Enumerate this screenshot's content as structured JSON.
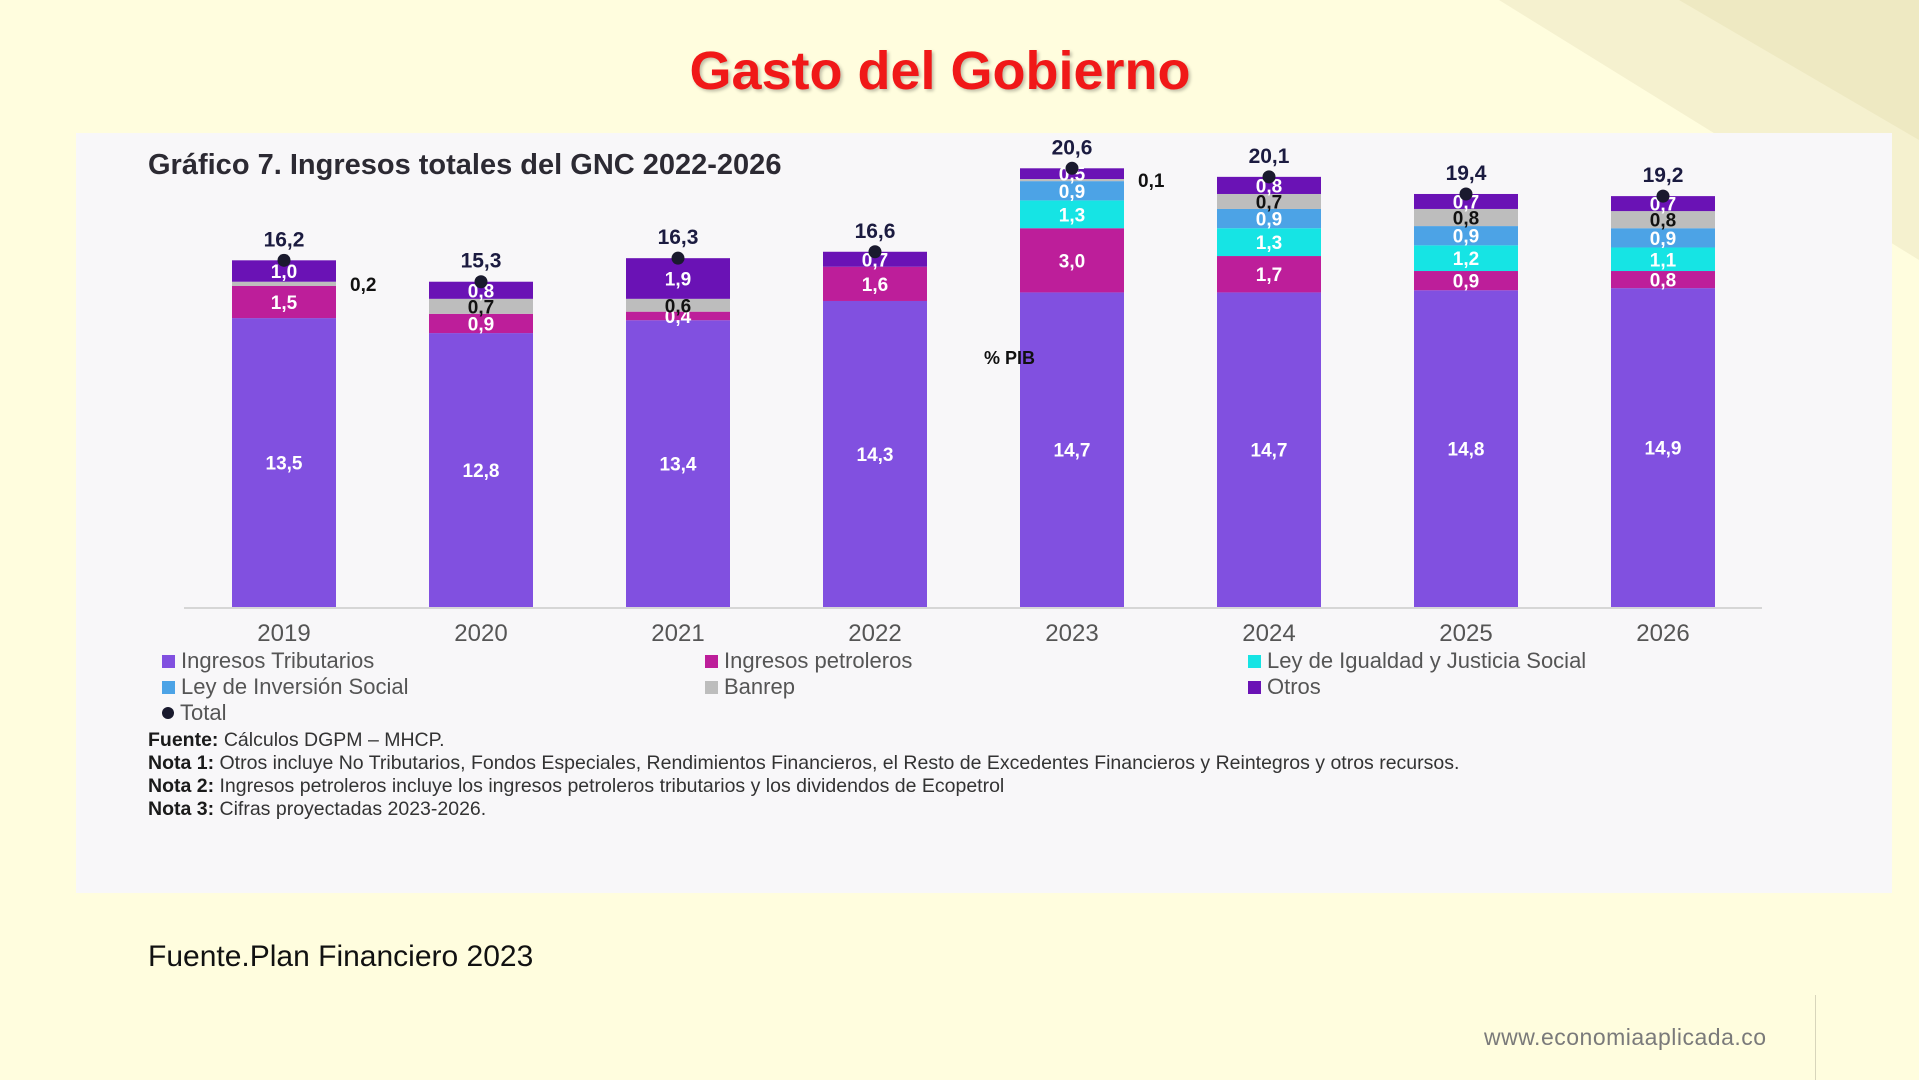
{
  "slide": {
    "title": "Gasto del Gobierno",
    "source": "Fuente.Plan Financiero 2023",
    "website": "www.economiaaplicada.co"
  },
  "chart_title": {
    "prefix": "Gráfico 7.",
    "text": "Ingresos totales del GNC 2022-2026"
  },
  "unit_label": "% PIB",
  "chart_data": {
    "type": "bar",
    "stacked": true,
    "categories": [
      "2019",
      "2020",
      "2021",
      "2022",
      "2023",
      "2024",
      "2025",
      "2026"
    ],
    "series": [
      {
        "name": "Ingresos Tributarios",
        "color": "#8150E0",
        "values": [
          13.5,
          12.8,
          13.4,
          14.3,
          14.7,
          14.7,
          14.8,
          14.9
        ],
        "labels": [
          "13,5",
          "12,8",
          "13,4",
          "14,3",
          "14,7",
          "14,7",
          "14,8",
          "14,9"
        ]
      },
      {
        "name": "Ingresos petroleros",
        "color": "#BD1E9A",
        "values": [
          1.5,
          0.9,
          0.4,
          1.6,
          3.0,
          1.7,
          0.9,
          0.8
        ],
        "labels": [
          "1,5",
          "0,9",
          "0,4",
          "1,6",
          "3,0",
          "1,7",
          "0,9",
          "0,8"
        ]
      },
      {
        "name": "Ley de Igualdad y Justicia Social",
        "color": "#16E4E4",
        "values": [
          0,
          0,
          0,
          0,
          1.3,
          1.3,
          1.2,
          1.1
        ],
        "labels": [
          "",
          "",
          "",
          "",
          "1,3",
          "1,3",
          "1,2",
          "1,1"
        ]
      },
      {
        "name": "Ley de Inversión Social",
        "color": "#4CA3E6",
        "values": [
          0,
          0,
          0,
          0,
          0.9,
          0.9,
          0.9,
          0.9
        ],
        "labels": [
          "",
          "",
          "",
          "",
          "0,9",
          "0,9",
          "0,9",
          "0,9"
        ]
      },
      {
        "name": "Banrep",
        "color": "#BDBDBD",
        "values": [
          0.2,
          0.7,
          0.6,
          0,
          0.1,
          0.7,
          0.8,
          0.8
        ],
        "labels": [
          "0,2",
          "0,7",
          "0,6",
          "",
          "0,1",
          "0,7",
          "0,8",
          "0,8"
        ]
      },
      {
        "name": "Otros",
        "color": "#6A12B5",
        "values": [
          1.0,
          0.8,
          1.9,
          0.7,
          0.5,
          0.8,
          0.7,
          0.7
        ],
        "labels": [
          "1,0",
          "0,8",
          "1,9",
          "0,7",
          "0,5",
          "0,8",
          "0,7",
          "0,7"
        ]
      }
    ],
    "totals": [
      16.2,
      15.3,
      16.3,
      16.6,
      20.6,
      20.1,
      19.4,
      19.2
    ],
    "total_labels": [
      "16,2",
      "15,3",
      "16,3",
      "16,6",
      "20,6",
      "20,1",
      "19,4",
      "19,2"
    ],
    "total_series_name": "Total",
    "ylim": [
      0,
      21
    ],
    "grid": false,
    "legend": "bottom"
  },
  "notes": [
    {
      "label": "Fuente:",
      "text": "Cálculos DGPM – MHCP."
    },
    {
      "label": "Nota 1:",
      "text": "Otros incluye No Tributarios, Fondos Especiales, Rendimientos Financieros, el Resto de Excedentes Financieros y Reintegros y otros recursos."
    },
    {
      "label": "Nota 2:",
      "text": "Ingresos petroleros incluye los ingresos petroleros tributarios y los dividendos de Ecopetrol"
    },
    {
      "label": "Nota 3:",
      "text": "Cifras proyectadas 2023-2026."
    }
  ]
}
